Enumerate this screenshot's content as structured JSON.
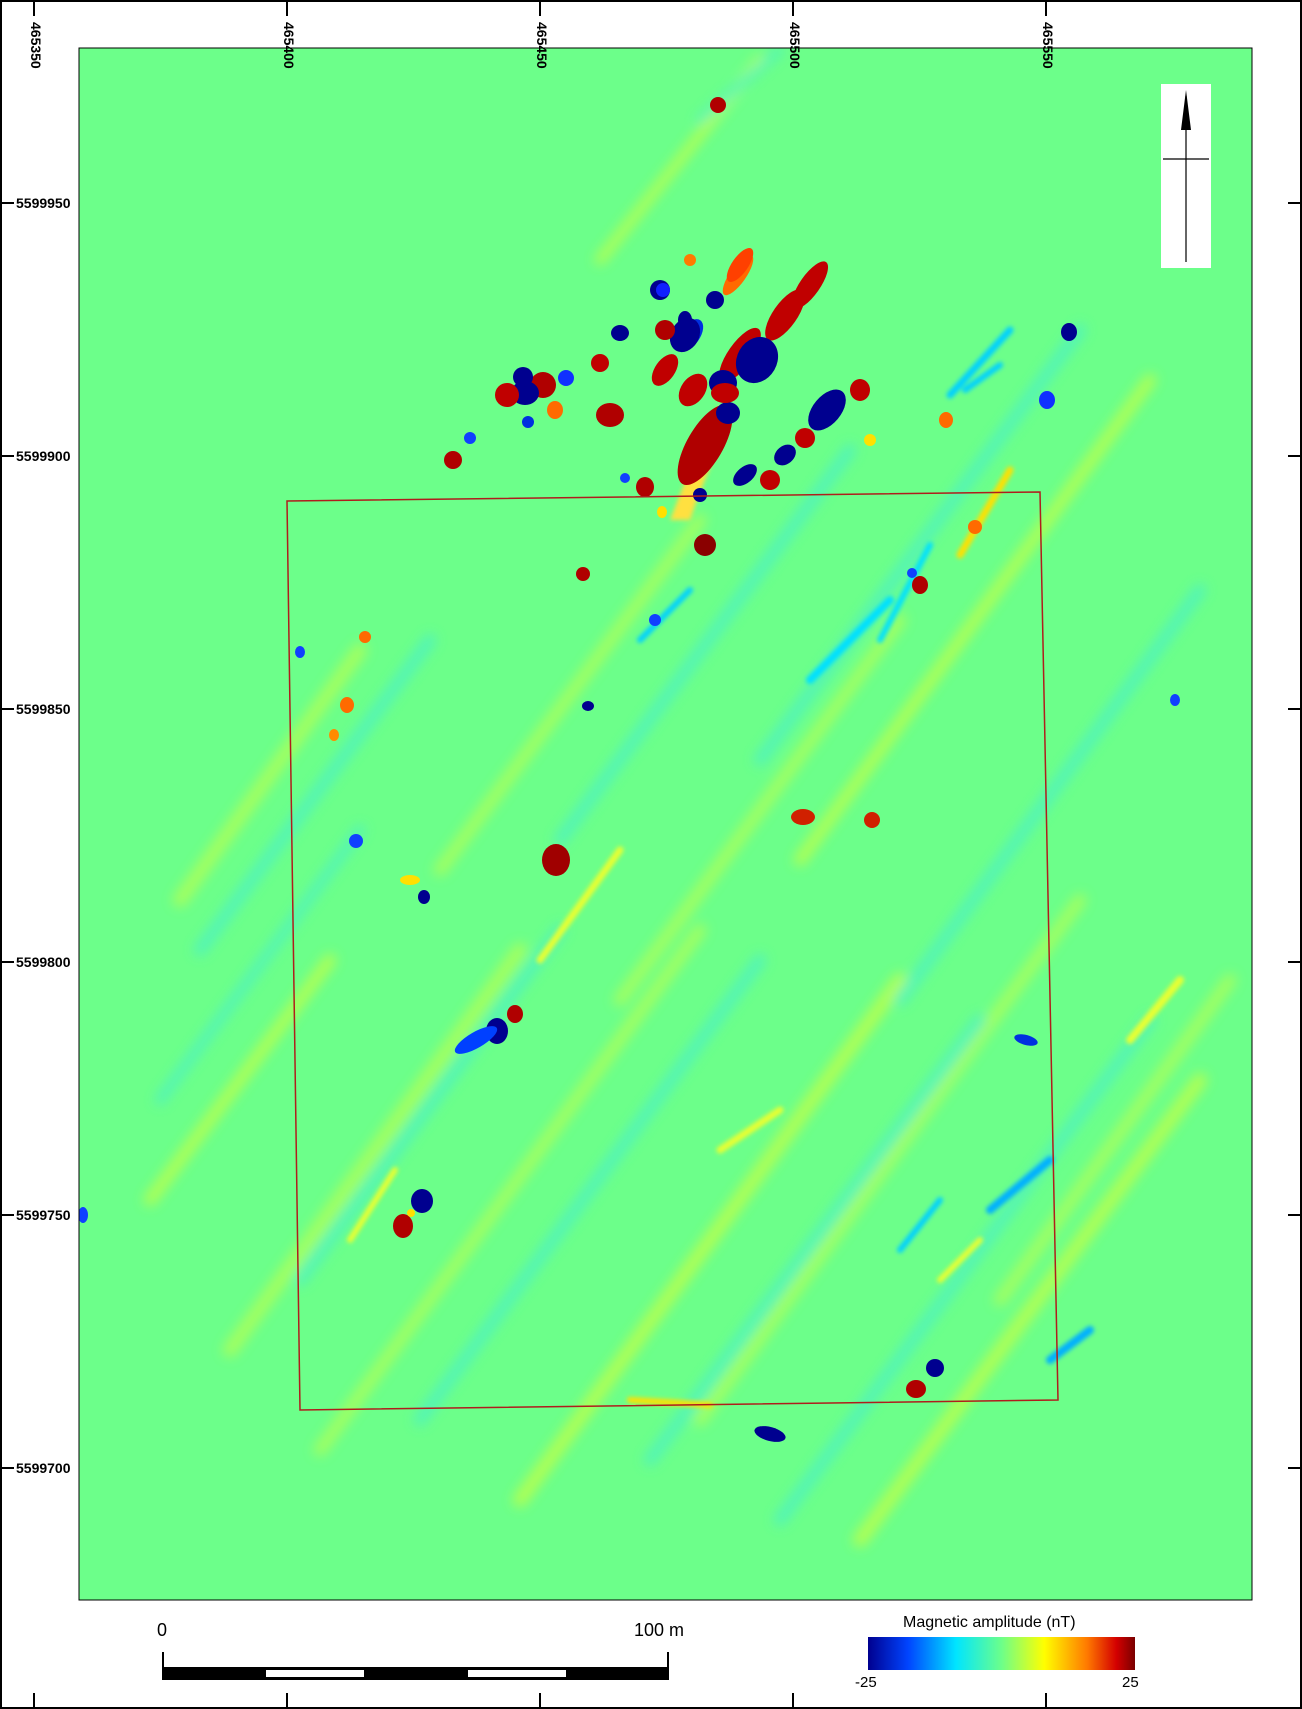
{
  "map": {
    "x_ticks": [
      "465350",
      "465400",
      "465450",
      "465500",
      "465550"
    ],
    "y_ticks": [
      "5599950",
      "5599900",
      "5599850",
      "5599800",
      "5599750",
      "5599700"
    ],
    "background_color": "#6cff8a",
    "survey_outline_color": "#b01c1c"
  },
  "north_arrow": {
    "icon": "north-arrow-icon"
  },
  "scale_bar": {
    "start_label": "0",
    "end_label": "100 m"
  },
  "legend": {
    "title": "Magnetic amplitude (nT)",
    "min_label": "-25",
    "max_label": "25",
    "colors": [
      "#00008f",
      "#0044ff",
      "#00e5ff",
      "#6cff8a",
      "#ffff00",
      "#ff7a00",
      "#b00000",
      "#7a0000"
    ]
  }
}
